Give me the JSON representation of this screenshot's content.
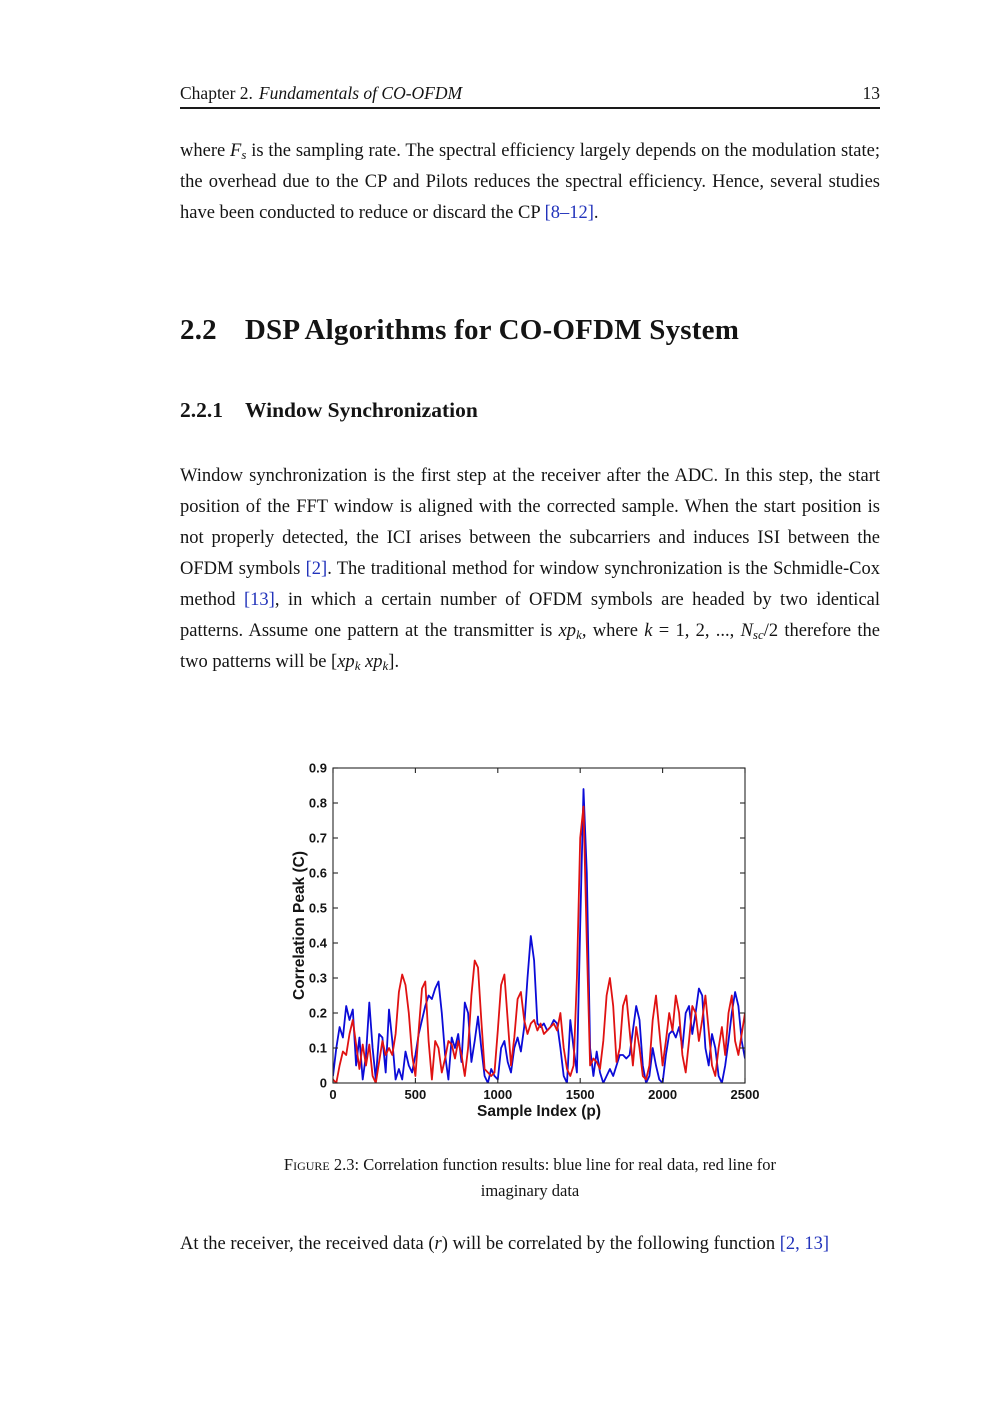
{
  "colors": {
    "citation": "#2233bb",
    "axis": "#262626",
    "series_real_blue": "#0b0bd8",
    "series_imag_red": "#e01212"
  },
  "page": {
    "header": {
      "chapter": "Chapter 2.",
      "title_italic": "Fundamentals of CO-OFDM",
      "page_number": "13"
    },
    "paragraph1": [
      {
        "t": "where "
      },
      {
        "t": "F",
        "s": "i"
      },
      {
        "t": "s",
        "s": "sub"
      },
      {
        "t": " is the sampling rate.  The spectral efficiency largely depends on the modulation state; the overhead due to the CP and Pilots reduces the spectral efficiency. Hence, several studies have been conducted to reduce or discard the CP "
      },
      {
        "t": "[8–12]",
        "s": "ref"
      },
      {
        "t": "."
      }
    ],
    "section": {
      "number": "2.2",
      "title": "DSP Algorithms for CO-OFDM System"
    },
    "subsection": {
      "number": "2.2.1",
      "title": "Window Synchronization"
    },
    "paragraph2": [
      {
        "t": "Window synchronization is the first step at the receiver after the ADC. In this step, the start position of the FFT window is aligned with the corrected sample. When the start position is not properly detected, the ICI arises between the subcarriers and induces ISI between the OFDM symbols "
      },
      {
        "t": "[2]",
        "s": "ref"
      },
      {
        "t": ". The traditional method for window synchronization is the Schmidle-Cox method "
      },
      {
        "t": "[13]",
        "s": "ref"
      },
      {
        "t": ", in which a certain number of OFDM symbols are headed by two identical patterns. Assume one pattern at the transmitter is "
      },
      {
        "t": "xp",
        "s": "i"
      },
      {
        "t": "k",
        "s": "sub"
      },
      {
        "t": ", where "
      },
      {
        "t": "k",
        "s": "i"
      },
      {
        "t": " = 1, 2, ..., "
      },
      {
        "t": "N",
        "s": "i"
      },
      {
        "t": "sc",
        "s": "sub"
      },
      {
        "t": "/2 therefore the two patterns will be ["
      },
      {
        "t": "xp",
        "s": "i"
      },
      {
        "t": "k",
        "s": "sub"
      },
      {
        "t": " "
      },
      {
        "t": "xp",
        "s": "i"
      },
      {
        "t": "k",
        "s": "sub"
      },
      {
        "t": "]."
      }
    ],
    "figure_caption": {
      "line1": [
        {
          "t": "Figure 2.3:",
          "s": "sc"
        },
        {
          "t": "  Correlation function results:  blue line for real data, red line for"
        }
      ],
      "line2": [
        {
          "t": "imaginary data"
        }
      ]
    },
    "paragraph3": [
      {
        "t": "At the receiver, the received data ("
      },
      {
        "t": "r",
        "s": "i"
      },
      {
        "t": ") will be correlated by the following function "
      },
      {
        "t": "[2, 13]",
        "s": "ref"
      }
    ]
  },
  "chart_data": {
    "type": "line",
    "title": "",
    "xlabel": "Sample Index (p)",
    "ylabel": "Correlation Peak (C)",
    "xlim": [
      0,
      2500
    ],
    "ylim": [
      0,
      0.9
    ],
    "xticks": [
      0,
      500,
      1000,
      1500,
      2000,
      2500
    ],
    "yticks": [
      0,
      0.1,
      0.2,
      0.3,
      0.4,
      0.5,
      0.6,
      0.7,
      0.8,
      0.9
    ],
    "grid": false,
    "legend_position": "none (lines identified in caption: blue = real data, red = imaginary data)",
    "series": [
      {
        "name": "real data",
        "color": "#0b0bd8",
        "x_start": 0,
        "x_step": 20,
        "values": [
          0.02,
          0.1,
          0.16,
          0.13,
          0.22,
          0.18,
          0.21,
          0.05,
          0.13,
          0.01,
          0.08,
          0.23,
          0.1,
          0.01,
          0.14,
          0.13,
          0.03,
          0.21,
          0.12,
          0.01,
          0.04,
          0.01,
          0.09,
          0.05,
          0.03,
          0.08,
          0.14,
          0.18,
          0.22,
          0.25,
          0.24,
          0.27,
          0.29,
          0.2,
          0.08,
          0.01,
          0.13,
          0.1,
          0.14,
          0.06,
          0.23,
          0.2,
          0.06,
          0.12,
          0.19,
          0.1,
          0.02,
          0.0,
          0.04,
          0.02,
          0.01,
          0.1,
          0.12,
          0.06,
          0.03,
          0.1,
          0.13,
          0.09,
          0.16,
          0.3,
          0.42,
          0.35,
          0.17,
          0.16,
          0.17,
          0.15,
          0.16,
          0.18,
          0.17,
          0.1,
          0.02,
          0.0,
          0.18,
          0.1,
          0.03,
          0.45,
          0.84,
          0.6,
          0.1,
          0.02,
          0.09,
          0.03,
          0.0,
          0.02,
          0.04,
          0.02,
          0.05,
          0.08,
          0.08,
          0.07,
          0.08,
          0.15,
          0.22,
          0.18,
          0.05,
          0.0,
          0.02,
          0.1,
          0.05,
          0.01,
          0.0,
          0.08,
          0.14,
          0.15,
          0.13,
          0.16,
          0.1,
          0.2,
          0.22,
          0.14,
          0.2,
          0.27,
          0.25,
          0.1,
          0.05,
          0.14,
          0.1,
          0.02,
          0.0,
          0.05,
          0.12,
          0.2,
          0.26,
          0.22,
          0.12,
          0.07
        ]
      },
      {
        "name": "imaginary data",
        "color": "#e01212",
        "x_start": 0,
        "x_step": 20,
        "values": [
          0.01,
          0.0,
          0.05,
          0.09,
          0.08,
          0.14,
          0.18,
          0.11,
          0.04,
          0.11,
          0.05,
          0.11,
          0.02,
          0.0,
          0.06,
          0.12,
          0.08,
          0.1,
          0.08,
          0.14,
          0.26,
          0.31,
          0.28,
          0.2,
          0.08,
          0.02,
          0.15,
          0.27,
          0.29,
          0.12,
          0.01,
          0.12,
          0.1,
          0.03,
          0.07,
          0.12,
          0.11,
          0.07,
          0.12,
          0.08,
          0.02,
          0.1,
          0.25,
          0.35,
          0.33,
          0.18,
          0.04,
          0.03,
          0.02,
          0.03,
          0.15,
          0.28,
          0.31,
          0.18,
          0.05,
          0.13,
          0.24,
          0.26,
          0.18,
          0.14,
          0.17,
          0.18,
          0.15,
          0.17,
          0.14,
          0.15,
          0.16,
          0.17,
          0.15,
          0.2,
          0.1,
          0.04,
          0.02,
          0.05,
          0.3,
          0.7,
          0.79,
          0.4,
          0.05,
          0.07,
          0.06,
          0.04,
          0.12,
          0.25,
          0.3,
          0.22,
          0.06,
          0.1,
          0.22,
          0.25,
          0.15,
          0.05,
          0.16,
          0.1,
          0.02,
          0.01,
          0.05,
          0.18,
          0.25,
          0.15,
          0.05,
          0.12,
          0.2,
          0.15,
          0.25,
          0.2,
          0.08,
          0.03,
          0.12,
          0.22,
          0.2,
          0.12,
          0.18,
          0.25,
          0.15,
          0.05,
          0.02,
          0.1,
          0.16,
          0.08,
          0.2,
          0.25,
          0.12,
          0.08,
          0.14,
          0.2
        ]
      }
    ]
  }
}
